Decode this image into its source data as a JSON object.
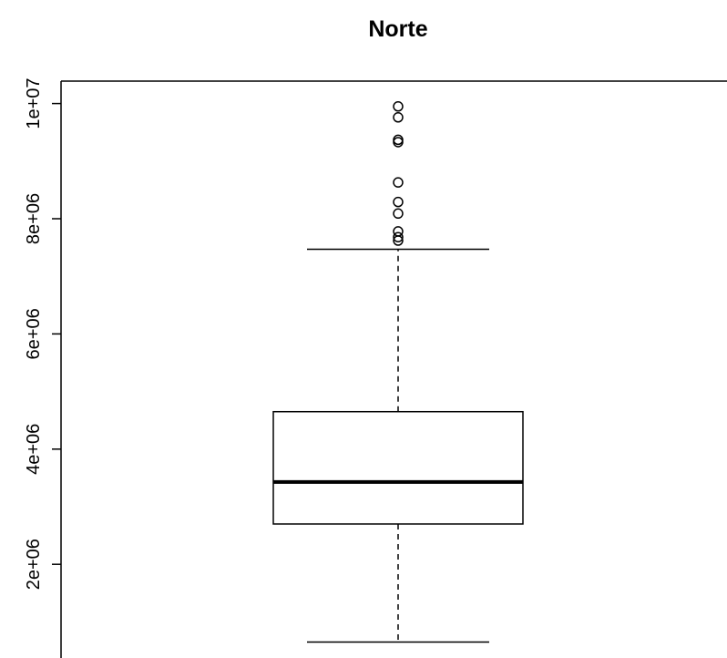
{
  "chart_data": {
    "type": "boxplot",
    "title": "Norte",
    "xlabel": "",
    "ylabel": "",
    "ylim": [
      0,
      10400000
    ],
    "y_ticks": [
      {
        "value": 2000000,
        "label": "2e+06"
      },
      {
        "value": 4000000,
        "label": "4e+06"
      },
      {
        "value": 6000000,
        "label": "6e+06"
      },
      {
        "value": 8000000,
        "label": "8e+06"
      },
      {
        "value": 10000000,
        "label": "1e+07"
      }
    ],
    "box": {
      "whisker_low": 650000,
      "q1": 2700000,
      "median": 3430000,
      "q3": 4650000,
      "whisker_high": 7470000
    },
    "outliers": [
      9950000,
      9760000,
      9370000,
      9330000,
      8630000,
      8290000,
      8090000,
      7780000,
      7680000,
      7620000
    ],
    "grid": false,
    "legend": "none"
  }
}
